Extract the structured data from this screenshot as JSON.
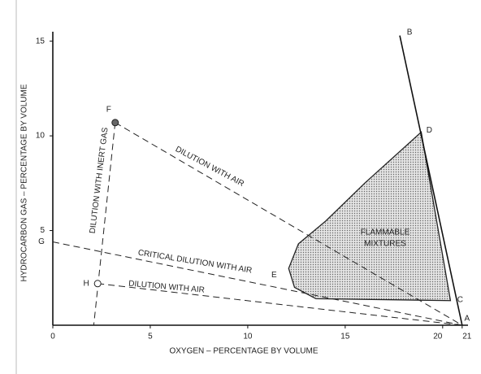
{
  "chart_data": {
    "type": "flammability",
    "xlabel": "OXYGEN – PERCENTAGE BY VOLUME",
    "ylabel": "HYDROCARBON GAS – PERCENTAGE BY VOLUME",
    "xlim": [
      0,
      21.3
    ],
    "ylim": [
      0,
      15.5
    ],
    "xticks": [
      0,
      5,
      10,
      15,
      20,
      21
    ],
    "yticks": [
      5,
      10,
      15
    ],
    "points": [
      {
        "label": "A",
        "x": 21,
        "y": 0,
        "marker": false
      },
      {
        "label": "B",
        "x": 17.8,
        "y": 15.3,
        "marker": false
      },
      {
        "label": "C",
        "x": 20.4,
        "y": 1.3,
        "marker": false
      },
      {
        "label": "D",
        "x": 18.9,
        "y": 10.2,
        "marker": false
      },
      {
        "label": "E",
        "x": 12.1,
        "y": 3,
        "marker": false
      },
      {
        "label": "F",
        "x": 3.2,
        "y": 10.7,
        "marker": true
      },
      {
        "label": "G",
        "x": 0,
        "y": 4.4,
        "marker": false
      },
      {
        "label": "H",
        "x": 2.3,
        "y": 2.2,
        "marker": true
      }
    ],
    "series": [
      {
        "x": [
          17.8,
          21
        ],
        "values": [
          15.3,
          0
        ],
        "color": "#111",
        "style": "solid"
      },
      {
        "x": [
          3.2,
          21
        ],
        "values": [
          10.7,
          0
        ],
        "color": "#222",
        "style": "dashed"
      },
      {
        "x": [
          3.2,
          2.1
        ],
        "values": [
          10.7,
          0
        ],
        "color": "#222",
        "style": "dashed"
      },
      {
        "x": [
          0,
          21
        ],
        "values": [
          4.4,
          0
        ],
        "color": "#222",
        "style": "dashed"
      },
      {
        "x": [
          2.3,
          21
        ],
        "values": [
          2.2,
          0
        ],
        "color": "#222",
        "style": "dashed"
      }
    ],
    "region": {
      "x": [
        18.9,
        16,
        14,
        12.6,
        12.1,
        12.4,
        13.5,
        20.4,
        18.9
      ],
      "values": [
        10.2,
        7.5,
        5.5,
        4.3,
        3,
        2,
        1.4,
        1.3,
        10.2
      ],
      "color": "#bbb"
    },
    "annotations": [
      "DILUTION WITH AIR",
      "DILUTION WITH INERT GAS",
      "CRITICAL DILUTION WITH AIR",
      "DILUTION WITH AIR",
      "FLAMMABLE",
      "MIXTURES"
    ]
  }
}
